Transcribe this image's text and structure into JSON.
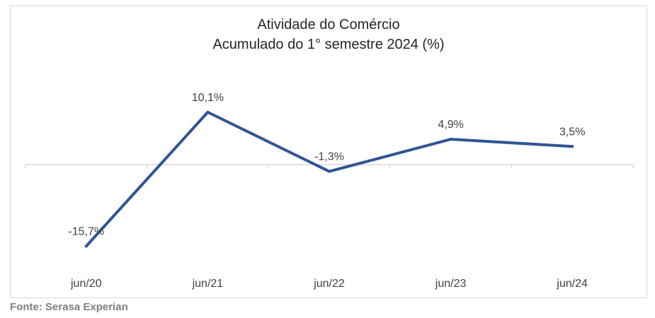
{
  "chart_data": {
    "type": "line",
    "title": "Atividade do Comércio",
    "subtitle": "Acumulado do 1° semestre 2024 (%)",
    "categories": [
      "jun/20",
      "jun/21",
      "jun/22",
      "jun/23",
      "jun/24"
    ],
    "series": [
      {
        "values": [
          -15.7,
          10.1,
          -1.3,
          4.9,
          3.5
        ],
        "data_labels": [
          "-15,7%",
          "10,1%",
          "-1,3%",
          "4,9%",
          "3,5%"
        ],
        "color": "#2f5597"
      }
    ],
    "ylim": [
      -16,
      11
    ],
    "xlabel": "",
    "ylabel": "",
    "grid": false,
    "legend": "none"
  },
  "source": "Fonte: Serasa Experian"
}
